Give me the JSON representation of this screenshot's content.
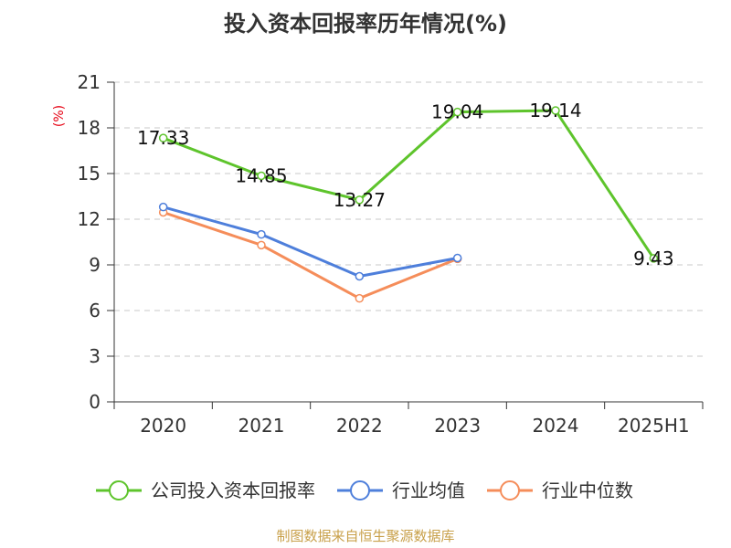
{
  "chart_data": {
    "type": "line",
    "title": "投入资本回报率历年情况(%)",
    "ylabel": "(%)",
    "xlabel": "",
    "categories": [
      "2020",
      "2021",
      "2022",
      "2023",
      "2024",
      "2025H1"
    ],
    "ylim": [
      0,
      21
    ],
    "yticks": [
      0,
      3,
      6,
      9,
      12,
      15,
      18,
      21
    ],
    "grid": true,
    "legend_position": "bottom",
    "series": [
      {
        "name": "公司投入资本回报率",
        "color": "#5ec42c",
        "values": [
          17.33,
          14.85,
          13.27,
          19.04,
          19.14,
          9.43
        ],
        "labels": [
          "17.33",
          "14.85",
          "13.27",
          "19.04",
          "19.14",
          "9.43"
        ],
        "show_labels": true
      },
      {
        "name": "行业均值",
        "color": "#4e7fdb",
        "values": [
          12.8,
          11.0,
          8.25,
          9.45,
          null,
          null
        ],
        "show_labels": false
      },
      {
        "name": "行业中位数",
        "color": "#f58d5a",
        "values": [
          12.45,
          10.3,
          6.8,
          9.4,
          null,
          null
        ],
        "show_labels": false
      }
    ]
  },
  "source": "制图数据来自恒生聚源数据库"
}
